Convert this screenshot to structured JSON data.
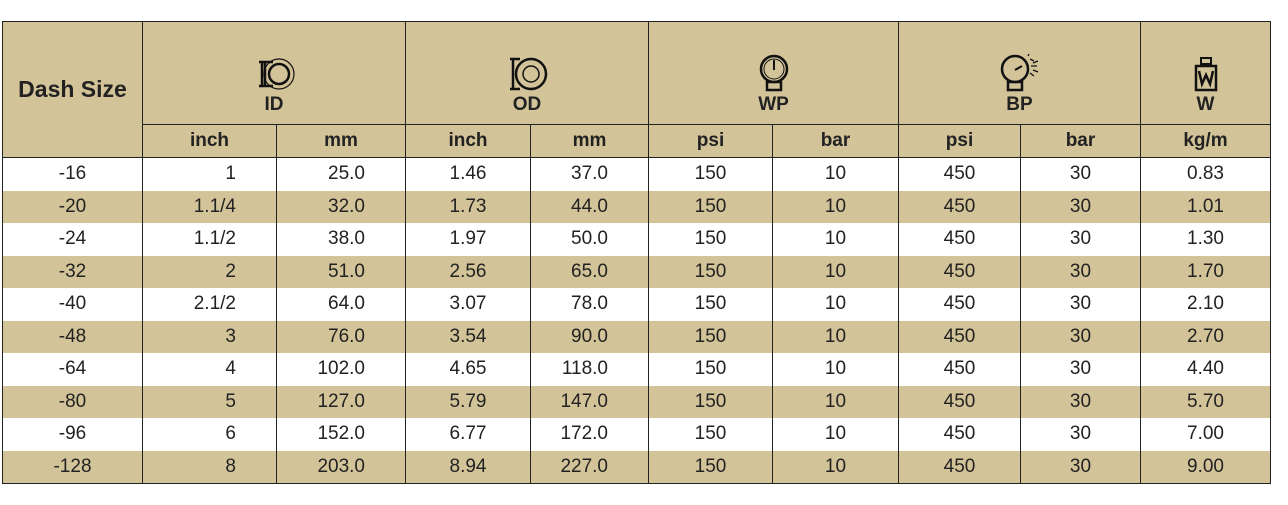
{
  "header": {
    "dash_size": "Dash Size",
    "groups": [
      {
        "label": "ID",
        "icon": "inner-diameter-icon",
        "units": [
          "inch",
          "mm"
        ]
      },
      {
        "label": "OD",
        "icon": "outer-diameter-icon",
        "units": [
          "inch",
          "mm"
        ]
      },
      {
        "label": "WP",
        "icon": "pressure-gauge-icon",
        "units": [
          "psi",
          "bar"
        ]
      },
      {
        "label": "BP",
        "icon": "burst-pressure-gauge-icon",
        "units": [
          "psi",
          "bar"
        ]
      },
      {
        "label": "W",
        "icon": "weight-icon",
        "units": [
          "kg/m"
        ]
      }
    ]
  },
  "rows": [
    [
      "-16",
      "1",
      "25.0",
      "1.46",
      "37.0",
      "150",
      "10",
      "450",
      "30",
      "0.83"
    ],
    [
      "-20",
      "1.1/4",
      "32.0",
      "1.73",
      "44.0",
      "150",
      "10",
      "450",
      "30",
      "1.01"
    ],
    [
      "-24",
      "1.1/2",
      "38.0",
      "1.97",
      "50.0",
      "150",
      "10",
      "450",
      "30",
      "1.30"
    ],
    [
      "-32",
      "2",
      "51.0",
      "2.56",
      "65.0",
      "150",
      "10",
      "450",
      "30",
      "1.70"
    ],
    [
      "-40",
      "2.1/2",
      "64.0",
      "3.07",
      "78.0",
      "150",
      "10",
      "450",
      "30",
      "2.10"
    ],
    [
      "-48",
      "3",
      "76.0",
      "3.54",
      "90.0",
      "150",
      "10",
      "450",
      "30",
      "2.70"
    ],
    [
      "-64",
      "4",
      "102.0",
      "4.65",
      "118.0",
      "150",
      "10",
      "450",
      "30",
      "4.40"
    ],
    [
      "-80",
      "5",
      "127.0",
      "5.79",
      "147.0",
      "150",
      "10",
      "450",
      "30",
      "5.70"
    ],
    [
      "-96",
      "6",
      "152.0",
      "6.77",
      "172.0",
      "150",
      "10",
      "450",
      "30",
      "7.00"
    ],
    [
      "-128",
      "8",
      "203.0",
      "8.94",
      "227.0",
      "150",
      "10",
      "450",
      "30",
      "9.00"
    ]
  ],
  "colors": {
    "header_bg": "#d3c398",
    "stripe_bg": "#d3c398",
    "border": "#222222"
  }
}
